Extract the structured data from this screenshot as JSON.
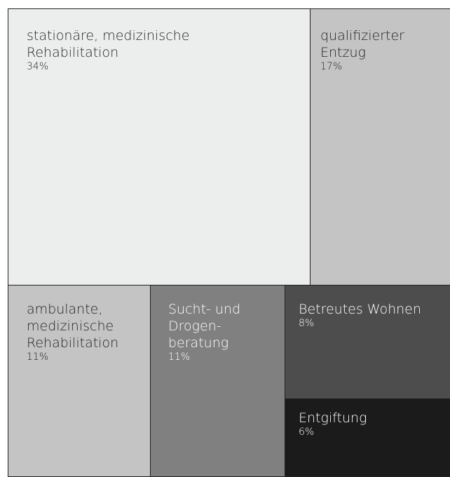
{
  "chart_data": {
    "type": "treemap",
    "categories": [
      "stationäre, medizinische\nRehabilitation",
      "qualifizierter\nEntzug",
      "ambulante,\nmedizinische\nRehabilitation",
      "Sucht- und\nDrogen-\nberatung",
      "Betreutes Wohnen",
      "Entgiftung"
    ],
    "values": [
      34,
      17,
      11,
      11,
      8,
      6
    ],
    "value_labels": [
      "34%",
      "17%",
      "11%",
      "11%",
      "8%",
      "6%"
    ],
    "colors": [
      "#eceeed",
      "#c4c4c4",
      "#c4c4c4",
      "#808080",
      "#4d4d4d",
      "#1a1b1a"
    ]
  }
}
